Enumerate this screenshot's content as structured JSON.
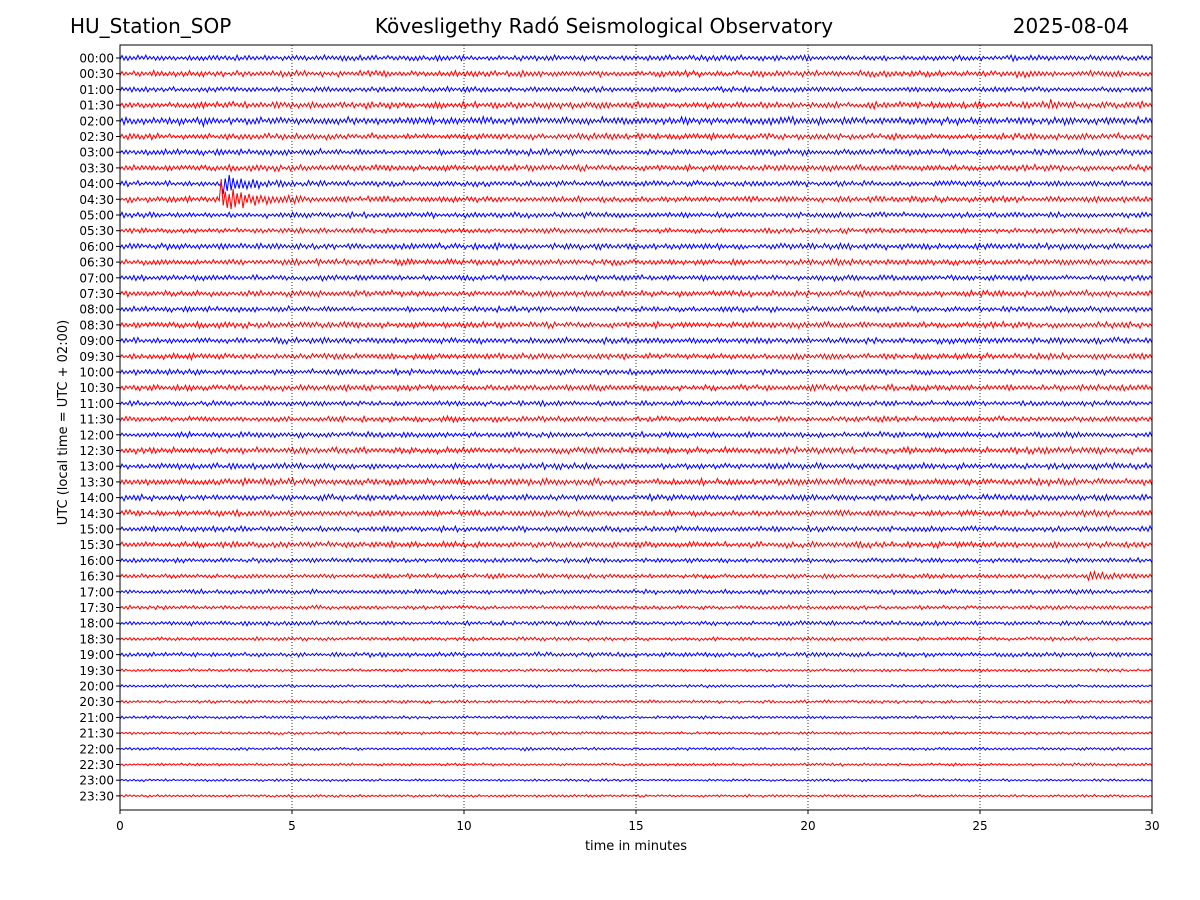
{
  "header": {
    "station": "HU_Station_SOP",
    "observatory": "Köveslig­ethy Radó Seismological Observatory",
    "date": "2025-08-04"
  },
  "chart_data": {
    "type": "line",
    "title": "Köveslig­ethy Radó Seismological Observatory",
    "xlabel": "time in minutes",
    "ylabel": "UTC (local time = UTC + 02:00)",
    "xlim": [
      0,
      30
    ],
    "xticks": [
      0,
      5,
      10,
      15,
      20,
      25,
      30
    ],
    "grid": "vertical dotted at x ticks",
    "rows": [
      "00:00",
      "00:30",
      "01:00",
      "01:30",
      "02:00",
      "02:30",
      "03:00",
      "03:30",
      "04:00",
      "04:30",
      "05:00",
      "05:30",
      "06:00",
      "06:30",
      "07:00",
      "07:30",
      "08:00",
      "08:30",
      "09:00",
      "09:30",
      "10:00",
      "10:30",
      "11:00",
      "11:30",
      "12:00",
      "12:30",
      "13:00",
      "13:30",
      "14:00",
      "14:30",
      "15:00",
      "15:30",
      "16:00",
      "16:30",
      "17:00",
      "17:30",
      "18:00",
      "18:30",
      "19:00",
      "19:30",
      "20:00",
      "20:30",
      "21:00",
      "21:30",
      "22:00",
      "22:30",
      "23:00",
      "23:30"
    ],
    "series_colors": [
      "#0000ff",
      "#ff0000"
    ],
    "row_noise": [
      0.55,
      0.6,
      0.5,
      0.65,
      0.75,
      0.6,
      0.6,
      0.6,
      0.55,
      0.6,
      0.55,
      0.5,
      0.6,
      0.6,
      0.55,
      0.6,
      0.55,
      0.6,
      0.6,
      0.6,
      0.55,
      0.6,
      0.5,
      0.55,
      0.55,
      0.65,
      0.6,
      0.65,
      0.6,
      0.6,
      0.55,
      0.6,
      0.45,
      0.45,
      0.45,
      0.4,
      0.45,
      0.35,
      0.45,
      0.3,
      0.3,
      0.3,
      0.3,
      0.28,
      0.28,
      0.28,
      0.25,
      0.25
    ],
    "events": [
      {
        "row": "04:00",
        "t_min": 3.0,
        "duration_min": 2.0,
        "amplitude": 4.5
      },
      {
        "row": "04:30",
        "t_min": 2.9,
        "duration_min": 2.5,
        "amplitude": 6.0
      },
      {
        "row": "16:30",
        "t_min": 28.1,
        "duration_min": 1.9,
        "amplitude": 2.2
      },
      {
        "row": "22:00",
        "t_min": 11.6,
        "duration_min": 0.8,
        "amplitude": 1.8
      },
      {
        "row": "02:00",
        "t_min": 2.4,
        "duration_min": 0.6,
        "amplitude": 1.3
      },
      {
        "row": "00:30",
        "t_min": 26.0,
        "duration_min": 0.5,
        "amplitude": 1.6
      },
      {
        "row": "01:30",
        "t_min": 27.0,
        "duration_min": 0.6,
        "amplitude": 1.3
      }
    ]
  }
}
